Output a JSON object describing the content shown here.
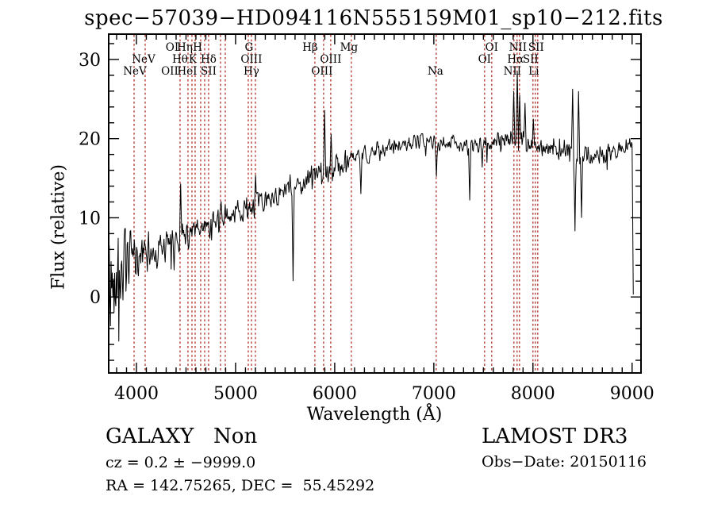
{
  "figure": {
    "title": "spec−57039−HD094116N555159M01_sp10−212.fits",
    "xlabel": "Wavelength (Å)",
    "ylabel": "Flux (relative)",
    "annotations": {
      "class_label": "GALAXY   Non",
      "cz_line": "cz = 0.2 ± −9999.0",
      "radec_line": "RA = 142.75265, DEC =  55.45292",
      "survey": "LAMOST DR3",
      "obs_date": "Obs−Date: 20150116"
    },
    "colors": {
      "ink": "#000000",
      "background": "#ffffff",
      "marker_line": "#b03028"
    }
  },
  "chart_data": {
    "type": "line",
    "title": "spec−57039−HD094116N555159M01_sp10−212.fits",
    "xlabel": "Wavelength (Å)",
    "ylabel": "Flux (relative)",
    "x_range": [
      3720,
      9090
    ],
    "y_range": [
      -9.6,
      33.2
    ],
    "x_major_ticks": [
      4000,
      5000,
      6000,
      7000,
      8000,
      9000
    ],
    "x_tick_labels": [
      "4000",
      "5000",
      "6000",
      "7000",
      "8000",
      "9000"
    ],
    "x_minor_step": 100,
    "y_major_ticks": [
      0,
      10,
      20,
      30
    ],
    "y_tick_labels": [
      "0",
      "10",
      "20",
      "30"
    ],
    "y_minor_step": 2,
    "grid": false,
    "legend": false,
    "marker_line_wavelengths": [
      3976,
      4088,
      4440,
      4520,
      4560,
      4592,
      4648,
      4688,
      4728,
      4848,
      4896,
      5128,
      5160,
      5200,
      5800,
      5888,
      5960,
      6168,
      7024,
      7512,
      7584,
      7808,
      7840,
      7864,
      8000,
      8024,
      8048
    ],
    "line_labels": [
      {
        "text": "OI",
        "row": 1,
        "wavelength": 4360
      },
      {
        "text": "Hη",
        "row": 1,
        "wavelength": 4488
      },
      {
        "text": "H",
        "row": 1,
        "wavelength": 4616
      },
      {
        "text": "G",
        "row": 1,
        "wavelength": 5136
      },
      {
        "text": "Hβ",
        "row": 1,
        "wavelength": 5752
      },
      {
        "text": "Mg",
        "row": 1,
        "wavelength": 6144
      },
      {
        "text": "OI",
        "row": 1,
        "wavelength": 7584
      },
      {
        "text": "NII",
        "row": 1,
        "wavelength": 7848
      },
      {
        "text": "SII",
        "row": 1,
        "wavelength": 8032
      },
      {
        "text": "NeV",
        "row": 2,
        "wavelength": 4072
      },
      {
        "text": "Hθ",
        "row": 2,
        "wavelength": 4440
      },
      {
        "text": "K",
        "row": 2,
        "wavelength": 4568
      },
      {
        "text": "Hδ",
        "row": 2,
        "wavelength": 4728
      },
      {
        "text": "OIII",
        "row": 2,
        "wavelength": 5160
      },
      {
        "text": "OIII",
        "row": 2,
        "wavelength": 5960
      },
      {
        "text": "OI",
        "row": 2,
        "wavelength": 7512
      },
      {
        "text": "Hα",
        "row": 2,
        "wavelength": 7824
      },
      {
        "text": "SII",
        "row": 2,
        "wavelength": 7976
      },
      {
        "text": "NeV",
        "row": 3,
        "wavelength": 3984
      },
      {
        "text": "OII",
        "row": 3,
        "wavelength": 4336
      },
      {
        "text": "HeI",
        "row": 3,
        "wavelength": 4512
      },
      {
        "text": "SII",
        "row": 3,
        "wavelength": 4728
      },
      {
        "text": "Hγ",
        "row": 3,
        "wavelength": 5160
      },
      {
        "text": "OIII",
        "row": 3,
        "wavelength": 5872
      },
      {
        "text": "Na",
        "row": 3,
        "wavelength": 7016
      },
      {
        "text": "NII",
        "row": 3,
        "wavelength": 7792
      },
      {
        "text": "Li",
        "row": 3,
        "wavelength": 8008
      }
    ],
    "spectrum": {
      "lambda_start": 3720,
      "lambda_end": 9016,
      "step": 6,
      "noise_seed": 42,
      "envelope": [
        [
          3720,
          1.0,
          7.5
        ],
        [
          3790,
          2.6,
          5.5
        ],
        [
          3860,
          3.6,
          4.2
        ],
        [
          3950,
          4.6,
          3.0
        ],
        [
          4060,
          5.2,
          2.2
        ],
        [
          4200,
          5.8,
          1.9
        ],
        [
          4350,
          6.6,
          1.8
        ],
        [
          4500,
          7.6,
          1.7
        ],
        [
          4650,
          8.6,
          1.5
        ],
        [
          4800,
          9.4,
          1.4
        ],
        [
          4950,
          10.6,
          1.3
        ],
        [
          5100,
          11.2,
          1.3
        ],
        [
          5250,
          11.7,
          1.2
        ],
        [
          5400,
          12.9,
          1.1
        ],
        [
          5560,
          13.5,
          1.0
        ],
        [
          5700,
          14.3,
          1.2
        ],
        [
          5860,
          15.7,
          1.3
        ],
        [
          6000,
          16.4,
          1.3
        ],
        [
          6160,
          17.3,
          1.1
        ],
        [
          6300,
          17.9,
          1.0
        ],
        [
          6460,
          18.5,
          1.0
        ],
        [
          6600,
          19.0,
          0.9
        ],
        [
          6760,
          19.4,
          0.85
        ],
        [
          6900,
          19.7,
          0.85
        ],
        [
          7050,
          19.4,
          0.85
        ],
        [
          7200,
          19.7,
          0.85
        ],
        [
          7360,
          18.7,
          0.95
        ],
        [
          7500,
          19.4,
          0.95
        ],
        [
          7660,
          19.5,
          1.05
        ],
        [
          7800,
          19.9,
          1.2
        ],
        [
          7960,
          19.4,
          1.0
        ],
        [
          8100,
          18.9,
          0.95
        ],
        [
          8260,
          18.5,
          0.95
        ],
        [
          8400,
          18.1,
          1.3
        ],
        [
          8560,
          17.5,
          1.2
        ],
        [
          8700,
          17.9,
          1.0
        ],
        [
          8860,
          18.7,
          0.95
        ],
        [
          9020,
          19.8,
          0.9
        ]
      ],
      "features": [
        [
          4448,
          14.3
        ],
        [
          5200,
          15.4
        ],
        [
          5577,
          2.0
        ],
        [
          5896,
          23.6
        ],
        [
          5962,
          20.6
        ],
        [
          6264,
          13.0
        ],
        [
          7026,
          15.2
        ],
        [
          7360,
          12.2
        ],
        [
          7806,
          26.0
        ],
        [
          7842,
          28.5
        ],
        [
          7866,
          25.5
        ],
        [
          7920,
          24.5
        ],
        [
          8002,
          22.5
        ],
        [
          8398,
          26.3
        ],
        [
          8424,
          8.3
        ],
        [
          8462,
          26.0
        ],
        [
          8490,
          10.0
        ],
        [
          9014,
          0.3
        ]
      ]
    }
  }
}
